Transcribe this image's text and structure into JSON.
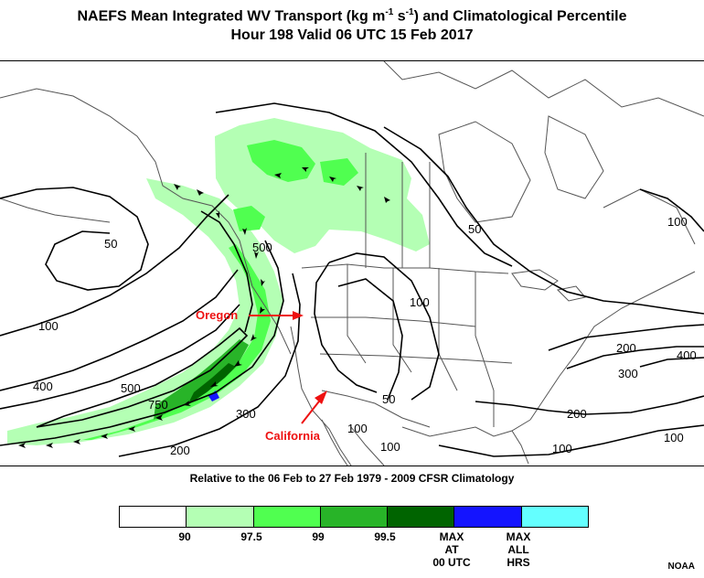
{
  "title_line1": "NAEFS Mean Integrated WV Transport (kg m",
  "title_sup1": "-1",
  "title_mid": " s",
  "title_sup2": "-1",
  "title_end": ") and Climatological Percentile",
  "title_line2": "Hour 198 Valid 06 UTC 15 Feb 2017",
  "climatology_note": "Relative to the 06 Feb to 27 Feb 1979 - 2009 CFSR Climatology",
  "credit": "NOAA",
  "annotations": {
    "oregon": "Oregon",
    "california": "California"
  },
  "contour_labels": [
    "50",
    "50",
    "500",
    "100",
    "100",
    "100",
    "400",
    "500",
    "750",
    "300",
    "200",
    "50",
    "100",
    "100",
    "200",
    "300",
    "400",
    "200",
    "100",
    "100"
  ],
  "legend": {
    "segments": [
      {
        "color": "#ffffff"
      },
      {
        "color": "#b4ffb4"
      },
      {
        "color": "#50ff50"
      },
      {
        "color": "#28b428"
      },
      {
        "color": "#006400"
      },
      {
        "color": "#1414ff"
      },
      {
        "color": "#64ffff"
      }
    ],
    "labels": [
      "90",
      "97.5",
      "99",
      "99.5",
      "MAX\nAT\n00 UTC",
      "MAX\nALL\nHRS"
    ]
  },
  "colors": {
    "annotation": "#ee1111",
    "coast": "#555555",
    "contour": "#000000"
  }
}
